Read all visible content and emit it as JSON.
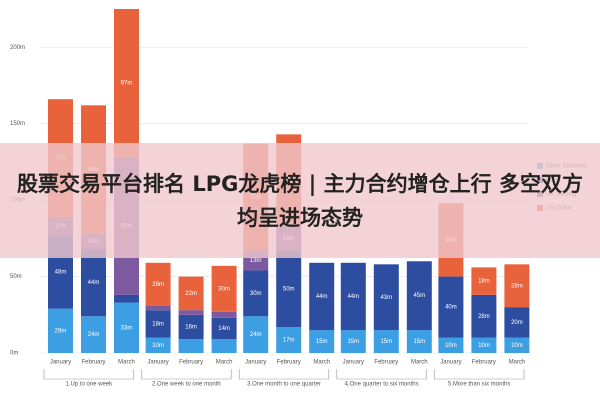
{
  "chart_data": {
    "type": "stacked_bar",
    "title": "股票交易平台排名 LPG龙虎榜 | 主力合约增仓上行 多空双方均呈进场态势",
    "categories": [
      "January",
      "February",
      "March",
      "January",
      "February",
      "March",
      "January",
      "February",
      "March",
      "January",
      "February",
      "March",
      "January",
      "February",
      "March"
    ],
    "groups": [
      "1.Up to one week",
      "2.One week to one month",
      "3.One month to one quarter",
      "4.One quarter to six months",
      "5.More than six months"
    ],
    "series": [
      {
        "name": "Other Currency",
        "color": "#3d9fe3",
        "values": [
          29,
          24,
          33,
          10,
          9,
          9,
          24,
          17,
          15,
          15,
          15,
          15,
          10,
          10,
          10
        ],
        "value_labels": [
          "29m",
          "24m",
          "33m",
          "10m",
          null,
          null,
          "24m",
          "17m",
          "15m",
          "15m",
          "15m",
          "15m",
          "10m",
          "10m",
          "10m"
        ]
      },
      {
        "name": "Euro",
        "color": "#2d4da0",
        "values": [
          48,
          44,
          5,
          18,
          16,
          14,
          30,
          50,
          44,
          44,
          43,
          45,
          40,
          28,
          20
        ],
        "value_labels": [
          "48m",
          "44m",
          null,
          "18m",
          "16m",
          "14m",
          "30m",
          "50m",
          "44m",
          "44m",
          "43m",
          "45m",
          "40m",
          "28m",
          "20m"
        ]
      },
      {
        "name": "UK Sterling",
        "color": "#7d5aa0",
        "values": [
          12,
          10,
          90,
          3,
          3,
          4,
          13,
          16,
          0,
          0,
          0,
          0,
          0,
          0,
          0
        ],
        "value_labels": [
          "12m",
          "10m",
          "90m",
          null,
          null,
          null,
          "13m",
          "16m",
          null,
          null,
          null,
          null,
          null,
          null,
          null
        ]
      },
      {
        "name": "US Dollar",
        "color": "#e8623b",
        "values": [
          77,
          84,
          97,
          28,
          22,
          30,
          70,
          60,
          0,
          0,
          0,
          0,
          48,
          18,
          28
        ],
        "value_labels": [
          "77m",
          "84m",
          "97m",
          "28m",
          "22m",
          "30m",
          "70m",
          "60m",
          null,
          null,
          null,
          null,
          "48m",
          "18m",
          "28m"
        ]
      }
    ],
    "ylim": [
      0,
      225
    ],
    "yticks": [
      {
        "value": 0,
        "label": "0m"
      },
      {
        "value": 50,
        "label": "50m"
      },
      {
        "value": 100,
        "label": "100m"
      },
      {
        "value": 150,
        "label": "150m"
      },
      {
        "value": 200,
        "label": "200m"
      }
    ],
    "grid": true,
    "legend": "right"
  }
}
